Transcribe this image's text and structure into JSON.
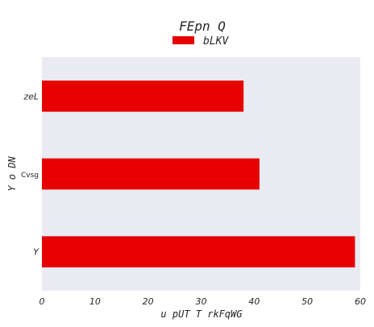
{
  "chart_data": {
    "type": "bar",
    "orientation": "horizontal",
    "title": "FEpn Q",
    "xlabel": "u pUT T rkFqWG",
    "ylabel": "Y o DN",
    "categories": [
      "zeL",
      "Cvsg",
      "Y"
    ],
    "series": [
      {
        "name": "bLKV",
        "values": [
          38,
          41,
          59
        ],
        "color": "#e60000"
      }
    ],
    "xlim": [
      0,
      60
    ],
    "xticks": [
      0,
      10,
      20,
      30,
      40,
      50,
      60
    ],
    "grid": false,
    "legend_position": "top-center",
    "background_color": "#eaeaf2"
  }
}
